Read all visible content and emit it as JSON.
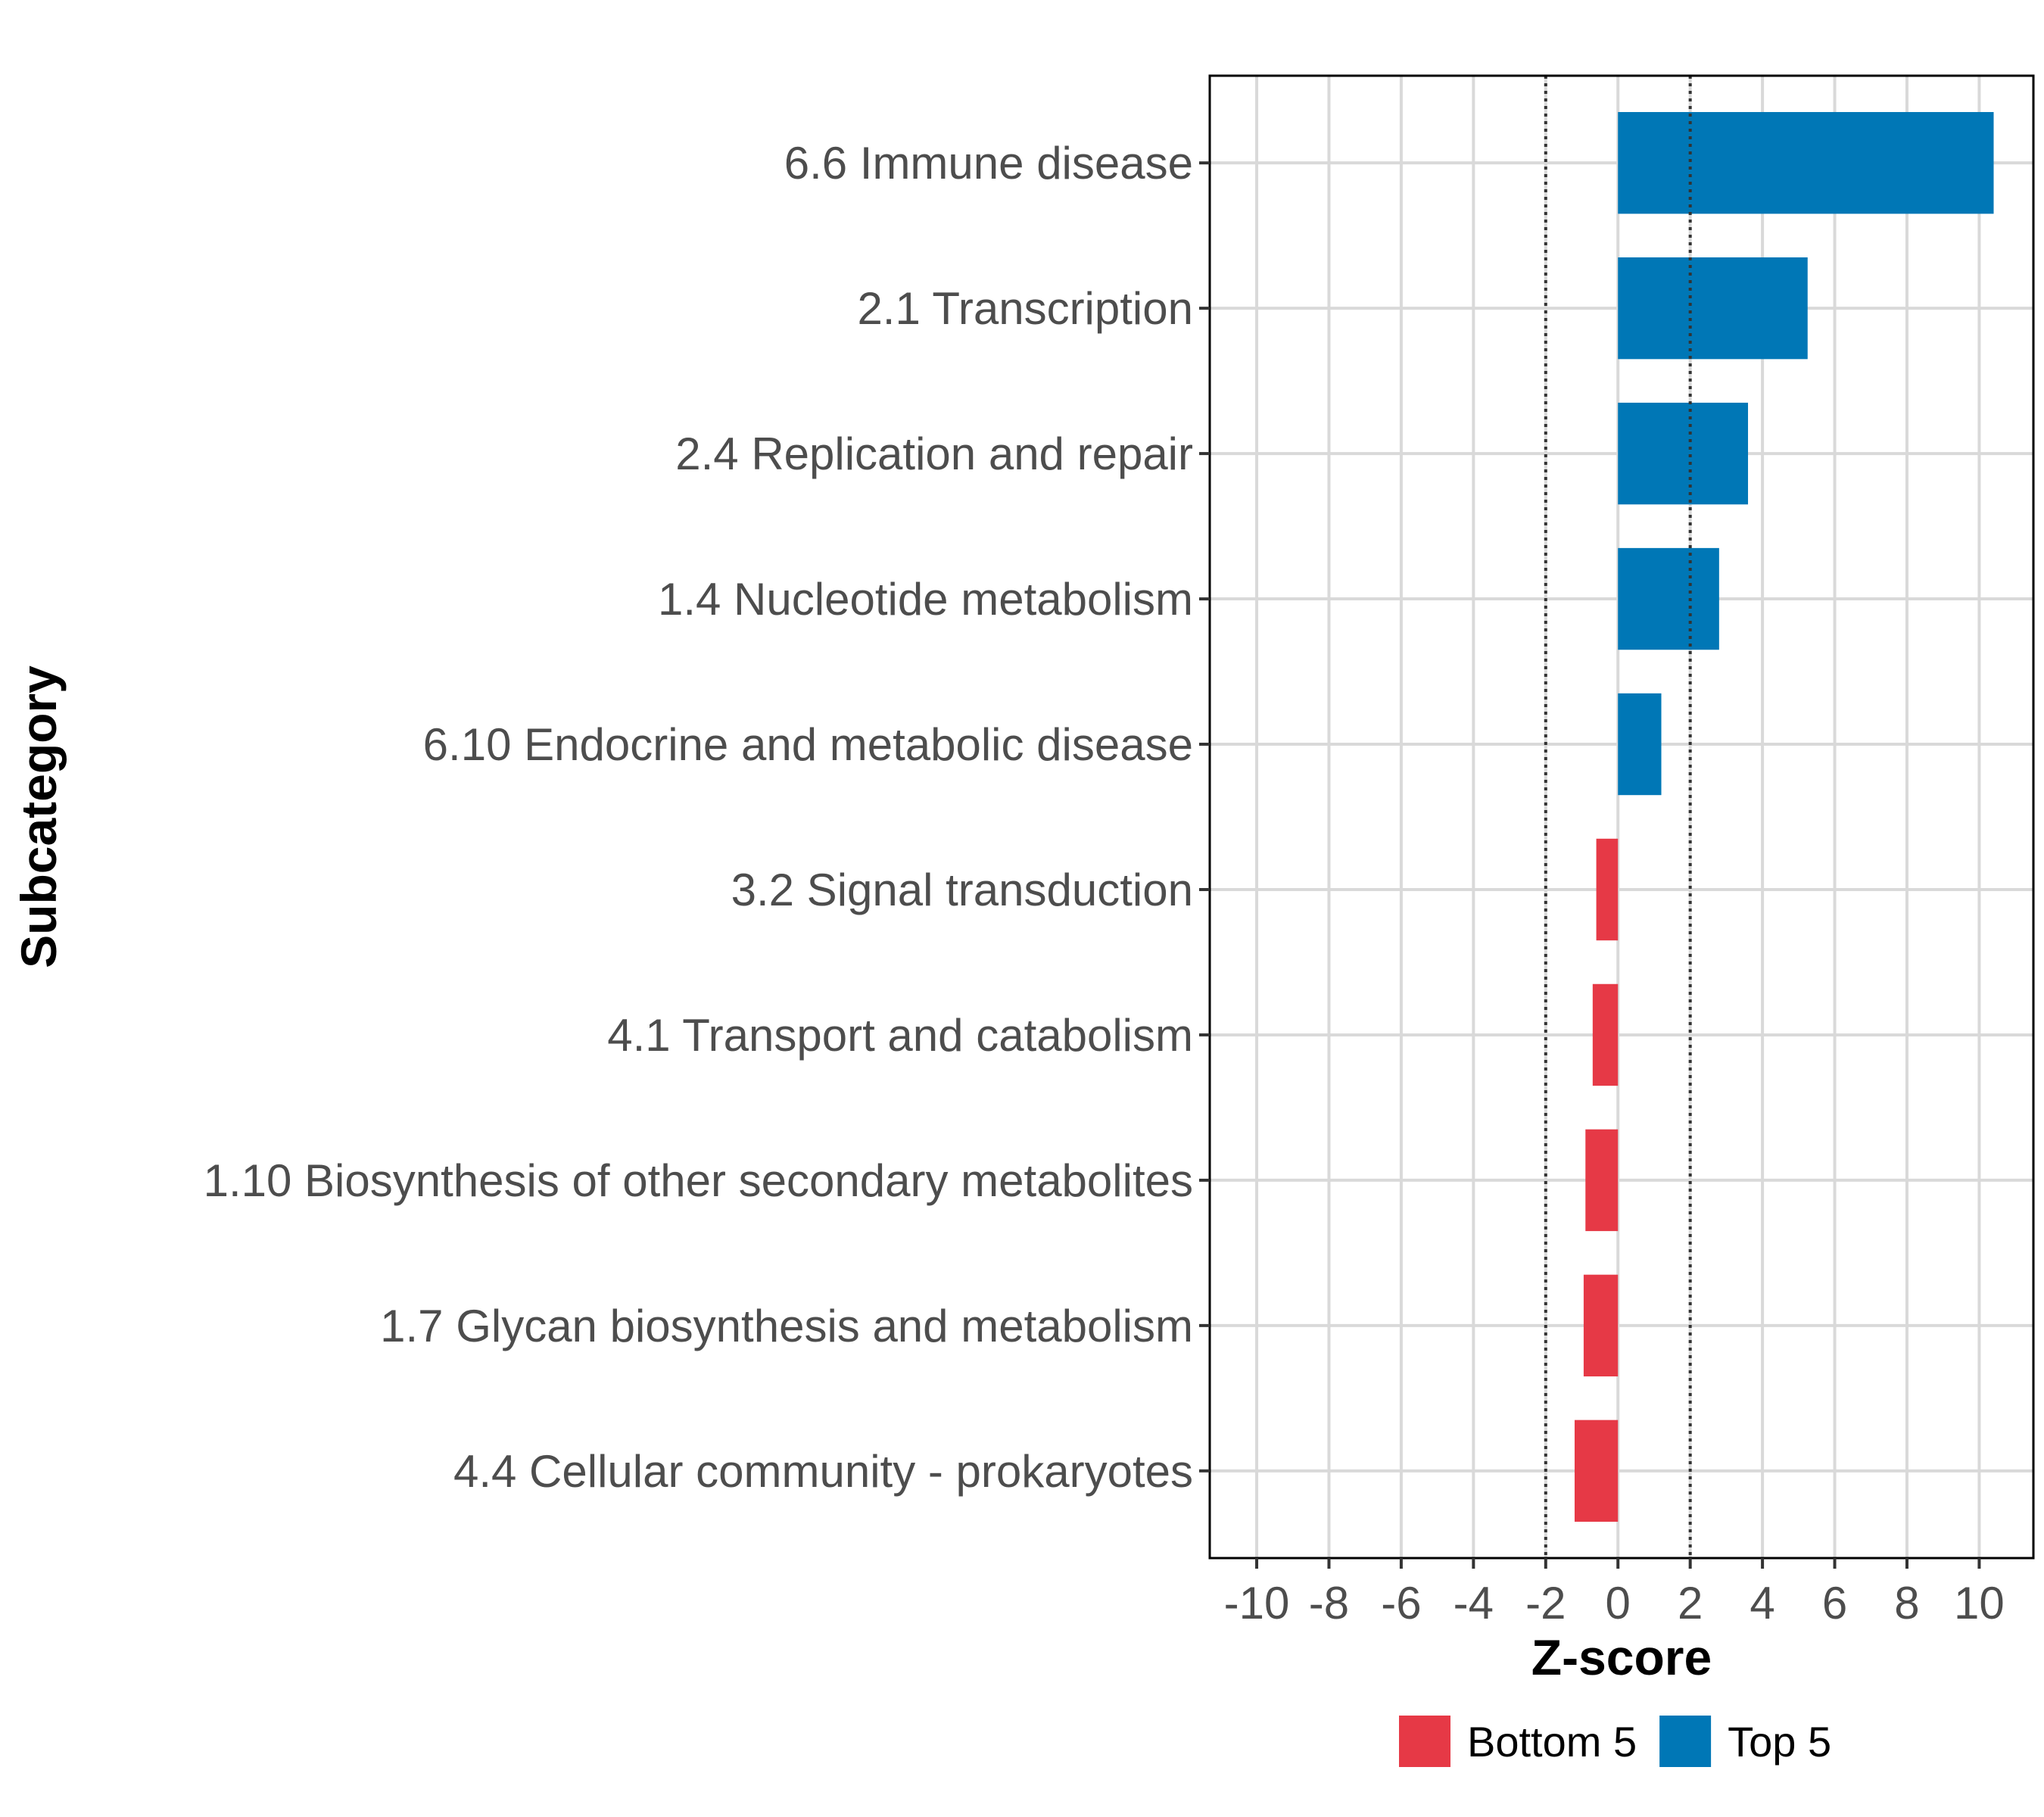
{
  "chart_data": {
    "type": "bar",
    "orientation": "horizontal",
    "title": "",
    "xlabel": "Z-score",
    "ylabel": "Subcategory",
    "xlim": [
      -11.3,
      11.5
    ],
    "xticks": [
      -10,
      -8,
      -6,
      -4,
      -2,
      0,
      2,
      4,
      6,
      8,
      10
    ],
    "xtick_labels": [
      "-10",
      "-8",
      "-6",
      "-4",
      "-2",
      "0",
      "2",
      "4",
      "6",
      "8",
      "10"
    ],
    "reference_lines": [
      -2,
      2
    ],
    "grid": true,
    "categories": [
      "6.6 Immune disease",
      "2.1 Transcription",
      "2.4 Replication and repair",
      "1.4 Nucleotide metabolism",
      "6.10 Endocrine and metabolic disease",
      "3.2 Signal transduction",
      "4.1 Transport and catabolism",
      "1.10 Biosynthesis of other secondary metabolites",
      "1.7 Glycan biosynthesis and metabolism",
      "4.4 Cellular community - prokaryotes"
    ],
    "values": [
      10.4,
      5.25,
      3.6,
      2.8,
      1.2,
      -0.6,
      -0.7,
      -0.9,
      -0.95,
      -1.2
    ],
    "groups": [
      "Top 5",
      "Top 5",
      "Top 5",
      "Top 5",
      "Top 5",
      "Bottom 5",
      "Bottom 5",
      "Bottom 5",
      "Bottom 5",
      "Bottom 5"
    ],
    "legend": [
      {
        "name": "Bottom 5",
        "color": "#e63946"
      },
      {
        "name": "Top 5",
        "color": "#0077b6"
      }
    ],
    "legend_position": "bottom"
  },
  "colors": {
    "top": "#0077b6",
    "bottom": "#e63946",
    "grid": "#d9d9d9",
    "text": "#4d4d4d"
  }
}
